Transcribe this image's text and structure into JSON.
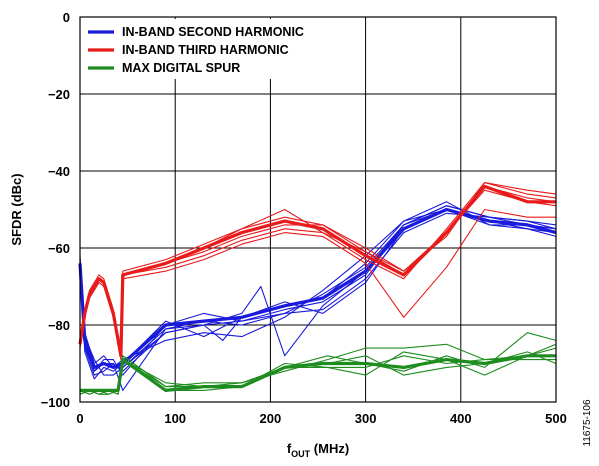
{
  "figure_id": "11675-106",
  "chart_data": {
    "type": "line",
    "xlabel_main": "f",
    "xlabel_sub": "OUT",
    "xlabel_unit": " (MHz)",
    "ylabel": "SFDR (dBc)",
    "xlim": [
      0,
      500
    ],
    "ylim": [
      -100,
      0
    ],
    "xticks": [
      0,
      100,
      200,
      300,
      400,
      500
    ],
    "yticks": [
      0,
      -20,
      -40,
      -60,
      -80,
      -100
    ],
    "ytick_labels": [
      "0",
      "−20",
      "−40",
      "−60",
      "−80",
      "−100"
    ],
    "grid": true,
    "legend_position": "top-left",
    "series": [
      {
        "name": "IN-BAND SECOND HARMONIC",
        "color": "#1a1adc",
        "curves": [
          {
            "bold": true,
            "x": [
              0,
              5,
              15,
              25,
              35,
              45,
              90,
              130,
              170,
              215,
              255,
              300,
              340,
              385,
              430,
              470,
              500
            ],
            "y": [
              -64,
              -84,
              -91,
              -90,
              -91,
              -90,
              -80,
              -79,
              -78,
              -75,
              -73,
              -66,
              -55,
              -50,
              -53,
              -54,
              -56
            ]
          },
          {
            "bold": false,
            "x": [
              0,
              5,
              15,
              25,
              35,
              45,
              90,
              130,
              170,
              215,
              255,
              300,
              340,
              385,
              430,
              470,
              500
            ],
            "y": [
              -66,
              -86,
              -93,
              -92,
              -90,
              -92,
              -82,
              -80,
              -79,
              -76,
              -74,
              -67,
              -54,
              -49,
              -52,
              -53,
              -55
            ]
          },
          {
            "bold": false,
            "x": [
              0,
              5,
              15,
              25,
              35,
              45,
              90,
              130,
              170,
              215,
              255,
              300,
              340,
              385,
              430,
              470,
              500
            ],
            "y": [
              -62,
              -82,
              -90,
              -88,
              -91,
              -89,
              -84,
              -82,
              -83,
              -78,
              -71,
              -62,
              -53,
              -48,
              -54,
              -55,
              -57
            ]
          },
          {
            "bold": false,
            "x": [
              0,
              5,
              15,
              25,
              35,
              45,
              90,
              130,
              170,
              215,
              255,
              300,
              340,
              385,
              430,
              470,
              500
            ],
            "y": [
              -63,
              -85,
              -92,
              -89,
              -89,
              -93,
              -80,
              -77,
              -79,
              -77,
              -76,
              -68,
              -56,
              -51,
              -52,
              -53,
              -54
            ]
          },
          {
            "bold": false,
            "x": [
              0,
              5,
              15,
              25,
              35,
              45,
              90,
              130,
              170,
              215,
              255,
              300,
              340,
              385,
              430,
              470,
              500
            ],
            "y": [
              -65,
              -87,
              -94,
              -91,
              -92,
              -90,
              -79,
              -83,
              -78,
              -74,
              -77,
              -69,
              -55,
              -50,
              -53,
              -55,
              -56
            ]
          },
          {
            "bold": false,
            "x": [
              0,
              5,
              15,
              25,
              35,
              45,
              90,
              130,
              150,
              170,
              215,
              255,
              300,
              340,
              385,
              430,
              470,
              500
            ],
            "y": [
              -64,
              -83,
              -89,
              -93,
              -93,
              -91,
              -82,
              -80,
              -84,
              -78,
              -75,
              -73,
              -64,
              -53,
              -50,
              -54,
              -54,
              -55
            ]
          },
          {
            "bold": false,
            "x": [
              0,
              5,
              15,
              25,
              35,
              45,
              90,
              130,
              170,
              215,
              255,
              300,
              340,
              385,
              430,
              470,
              500
            ],
            "y": [
              -64,
              -86,
              -91,
              -90,
              -90,
              -97,
              -81,
              -79,
              -80,
              -77,
              -72,
              -65,
              -54,
              -49,
              -52,
              -54,
              -55
            ]
          },
          {
            "bold": false,
            "x": [
              0,
              5,
              15,
              25,
              35,
              45,
              90,
              130,
              170,
              190,
              215,
              255,
              300,
              340,
              385,
              430,
              470,
              500
            ],
            "y": [
              -65,
              -85,
              -92,
              -90,
              -91,
              -91,
              -81,
              -80,
              -77,
              -70,
              -88,
              -75,
              -66,
              -54,
              -50,
              -53,
              -54,
              -56
            ]
          }
        ]
      },
      {
        "name": "IN-BAND THIRD HARMONIC",
        "color": "#e81a1a",
        "curves": [
          {
            "bold": true,
            "x": [
              0,
              5,
              10,
              20,
              25,
              35,
              43,
              45,
              90,
              130,
              170,
              215,
              255,
              300,
              340,
              385,
              425,
              470,
              500
            ],
            "y": [
              -85,
              -77,
              -72,
              -68,
              -69,
              -77,
              -88,
              -67,
              -64,
              -60,
              -56,
              -53,
              -55,
              -62,
              -67,
              -56,
              -44,
              -48,
              -48
            ]
          },
          {
            "bold": false,
            "x": [
              0,
              5,
              10,
              20,
              25,
              35,
              43,
              45,
              90,
              130,
              170,
              215,
              255,
              300,
              340,
              385,
              425,
              470,
              500
            ],
            "y": [
              -84,
              -76,
              -71,
              -67,
              -68,
              -76,
              -87,
              -66,
              -63,
              -59,
              -55,
              -52,
              -54,
              -60,
              -66,
              -57,
              -43,
              -46,
              -47
            ]
          },
          {
            "bold": false,
            "x": [
              0,
              5,
              10,
              20,
              25,
              35,
              43,
              45,
              90,
              130,
              170,
              215,
              255,
              300,
              340,
              385,
              425,
              470,
              500
            ],
            "y": [
              -86,
              -78,
              -73,
              -69,
              -70,
              -78,
              -89,
              -67,
              -65,
              -62,
              -58,
              -55,
              -56,
              -61,
              -67,
              -56,
              -45,
              -48,
              -49
            ]
          },
          {
            "bold": false,
            "x": [
              0,
              5,
              10,
              20,
              25,
              35,
              43,
              45,
              90,
              130,
              170,
              215,
              255,
              300,
              340,
              385,
              425,
              470,
              500
            ],
            "y": [
              -85,
              -77,
              -72,
              -68,
              -69,
              -77,
              -88,
              -67,
              -64,
              -60,
              -55,
              -50,
              -56,
              -63,
              -68,
              -55,
              -43,
              -45,
              -46
            ]
          },
          {
            "bold": false,
            "x": [
              0,
              5,
              10,
              20,
              25,
              35,
              43,
              45,
              90,
              130,
              170,
              215,
              255,
              300,
              340,
              385,
              425,
              470,
              500
            ],
            "y": [
              -85,
              -77,
              -72,
              -68,
              -69,
              -77,
              -88,
              -68,
              -66,
              -63,
              -59,
              -56,
              -57,
              -64,
              -78,
              -65,
              -50,
              -52,
              -52
            ]
          },
          {
            "bold": false,
            "x": [
              0,
              5,
              10,
              20,
              25,
              35,
              43,
              45,
              90,
              130,
              170,
              215,
              255,
              300,
              340,
              385,
              425,
              470,
              500
            ],
            "y": [
              -85,
              -77,
              -72,
              -68,
              -69,
              -77,
              -88,
              -67,
              -64,
              -61,
              -57,
              -54,
              -54,
              -61,
              -66,
              -56,
              -44,
              -47,
              -48
            ]
          }
        ]
      },
      {
        "name": "MAX DIGITAL SPUR",
        "color": "#1e8c1e",
        "curves": [
          {
            "bold": true,
            "x": [
              0,
              10,
              20,
              30,
              40,
              45,
              90,
              130,
              170,
              215,
              255,
              300,
              340,
              385,
              425,
              470,
              500
            ],
            "y": [
              -97,
              -97,
              -97,
              -97,
              -97,
              -89,
              -97,
              -96,
              -96,
              -91,
              -90,
              -90,
              -91,
              -89,
              -90,
              -88,
              -88
            ]
          },
          {
            "bold": false,
            "x": [
              0,
              10,
              20,
              30,
              40,
              45,
              90,
              130,
              170,
              215,
              260,
              300,
              340,
              385,
              425,
              470,
              500
            ],
            "y": [
              -98,
              -97,
              -98,
              -98,
              -97,
              -88,
              -96,
              -96,
              -95,
              -91,
              -88,
              -90,
              -92,
              -88,
              -91,
              -82,
              -84
            ]
          },
          {
            "bold": false,
            "x": [
              0,
              10,
              20,
              30,
              40,
              45,
              90,
              130,
              170,
              215,
              260,
              300,
              340,
              385,
              425,
              470,
              500
            ],
            "y": [
              -97,
              -98,
              -97,
              -97,
              -98,
              -89,
              -96,
              -95,
              -95,
              -92,
              -89,
              -86,
              -86,
              -85,
              -89,
              -88,
              -86
            ]
          },
          {
            "bold": false,
            "x": [
              0,
              10,
              20,
              30,
              40,
              45,
              90,
              130,
              170,
              215,
              260,
              300,
              340,
              385,
              425,
              470,
              500
            ],
            "y": [
              -98,
              -97,
              -97,
              -98,
              -97,
              -89,
              -97,
              -97,
              -96,
              -91,
              -91,
              -91,
              -88,
              -90,
              -89,
              -89,
              -89
            ]
          },
          {
            "bold": false,
            "x": [
              0,
              10,
              20,
              30,
              40,
              45,
              90,
              130,
              170,
              215,
              260,
              300,
              340,
              385,
              425,
              470,
              500
            ],
            "y": [
              -97,
              -97,
              -98,
              -97,
              -97,
              -88,
              -96,
              -96,
              -96,
              -90,
              -91,
              -93,
              -87,
              -89,
              -93,
              -88,
              -85
            ]
          },
          {
            "bold": false,
            "x": [
              0,
              10,
              20,
              30,
              40,
              45,
              90,
              130,
              170,
              215,
              260,
              300,
              340,
              385,
              425,
              470,
              500
            ],
            "y": [
              -97,
              -98,
              -97,
              -97,
              -98,
              -89,
              -95,
              -96,
              -96,
              -91,
              -90,
              -88,
              -93,
              -91,
              -90,
              -87,
              -90
            ]
          }
        ]
      }
    ]
  }
}
